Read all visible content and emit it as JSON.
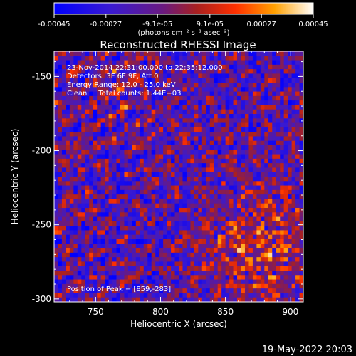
{
  "colorbar": {
    "tick_labels": [
      "-0.00045",
      "-0.00027",
      "-9.1e-05",
      "9.1e-05",
      "0.00027",
      "0.00045"
    ],
    "tick_values": [
      -0.00045,
      -0.00027,
      -9.1e-05,
      9.1e-05,
      0.00027,
      0.00045
    ],
    "range": [
      -0.00045,
      0.00045
    ],
    "units": "(photons cm⁻² s⁻¹ asec⁻²)",
    "colors": [
      "#0000ff",
      "#5a1aa0",
      "#8a1f3a",
      "#e02a10",
      "#ff8c00",
      "#ffe060",
      "#ffffff"
    ]
  },
  "chart_data": {
    "type": "heatmap",
    "title": "Reconstructed RHESSI Image",
    "xlabel": "Heliocentric X (arcsec)",
    "ylabel": "Heliocentric Y (arcsec)",
    "xlim": [
      718,
      910
    ],
    "ylim": [
      -302,
      -133
    ],
    "x_ticks": [
      750,
      800,
      850,
      900
    ],
    "y_ticks": [
      -150,
      -200,
      -250,
      -300
    ],
    "x_tick_labels": [
      "750",
      "800",
      "850",
      "900"
    ],
    "y_tick_labels": [
      "-150",
      "-200",
      "-250",
      "-300"
    ],
    "annotations": [
      "23-Nov-2014 22:31:00.000 to 22:35:12.000",
      "Detectors: 3F 6F 9F, Att 0",
      "Energy Range: 12.0 - 25.0 keV",
      "Clean     Total counts: 1.44E+03"
    ],
    "peak_label": "Position of Peak = [859,-283]",
    "peak": [
      859,
      -283
    ],
    "grid_cols": 64,
    "grid_rows": 56
  },
  "footer": {
    "timestamp": "19-May-2022 20:03"
  }
}
